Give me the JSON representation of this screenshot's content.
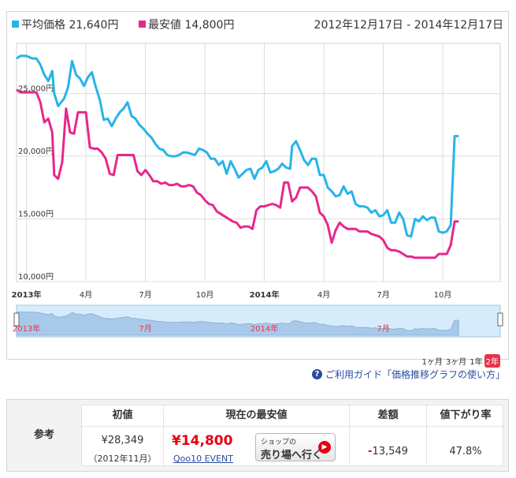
{
  "legend": {
    "avg_label": "平均価格",
    "avg_value": "21,640円",
    "min_label": "最安値",
    "min_value": "14,800円",
    "date_range": "2012年12月17日 - 2014年12月17日"
  },
  "colors": {
    "avg": "#27b4ea",
    "min": "#e8278c",
    "navigator_fill": "#a9c9ea",
    "navigator_bg": "#d6ecfa"
  },
  "chart_data": {
    "type": "line",
    "ylim": [
      10000,
      29000
    ],
    "y_ticks": [
      {
        "value": 10000,
        "label": "10,000円"
      },
      {
        "value": 15000,
        "label": "15,000円"
      },
      {
        "value": 20000,
        "label": "20,000円"
      },
      {
        "value": 25000,
        "label": "25,000円"
      }
    ],
    "x_range": [
      0,
      24.4
    ],
    "x_ticks": [
      {
        "t": 0.5,
        "label": "2013年",
        "bold": true
      },
      {
        "t": 3.5,
        "label": "4月",
        "bold": false
      },
      {
        "t": 6.5,
        "label": "7月",
        "bold": false
      },
      {
        "t": 9.5,
        "label": "10月",
        "bold": false
      },
      {
        "t": 12.5,
        "label": "2014年",
        "bold": true
      },
      {
        "t": 15.5,
        "label": "4月",
        "bold": false
      },
      {
        "t": 18.5,
        "label": "7月",
        "bold": false
      },
      {
        "t": 21.5,
        "label": "10月",
        "bold": false
      }
    ],
    "grid": true,
    "series": [
      {
        "name": "平均価格",
        "points": [
          [
            0.0,
            27800
          ],
          [
            0.2,
            28000
          ],
          [
            0.5,
            28000
          ],
          [
            0.8,
            27800
          ],
          [
            1.0,
            27800
          ],
          [
            1.2,
            27300
          ],
          [
            1.4,
            26500
          ],
          [
            1.6,
            26000
          ],
          [
            1.8,
            26800
          ],
          [
            1.9,
            25000
          ],
          [
            2.1,
            24000
          ],
          [
            2.4,
            24600
          ],
          [
            2.6,
            25500
          ],
          [
            2.8,
            27600
          ],
          [
            3.0,
            26500
          ],
          [
            3.2,
            26200
          ],
          [
            3.4,
            25600
          ],
          [
            3.6,
            26300
          ],
          [
            3.8,
            26700
          ],
          [
            4.0,
            25500
          ],
          [
            4.2,
            24500
          ],
          [
            4.4,
            22900
          ],
          [
            4.6,
            23000
          ],
          [
            4.8,
            22400
          ],
          [
            5.0,
            23000
          ],
          [
            5.2,
            23500
          ],
          [
            5.4,
            23800
          ],
          [
            5.6,
            24300
          ],
          [
            5.8,
            23200
          ],
          [
            6.0,
            23000
          ],
          [
            6.2,
            22500
          ],
          [
            6.4,
            22200
          ],
          [
            6.6,
            21800
          ],
          [
            6.8,
            21500
          ],
          [
            7.0,
            21000
          ],
          [
            7.2,
            20600
          ],
          [
            7.4,
            20500
          ],
          [
            7.6,
            20100
          ],
          [
            7.8,
            20000
          ],
          [
            8.0,
            20000
          ],
          [
            8.2,
            20100
          ],
          [
            8.4,
            20300
          ],
          [
            8.6,
            20300
          ],
          [
            8.8,
            20200
          ],
          [
            9.0,
            20100
          ],
          [
            9.2,
            20600
          ],
          [
            9.4,
            20500
          ],
          [
            9.6,
            20300
          ],
          [
            9.8,
            19800
          ],
          [
            10.0,
            19800
          ],
          [
            10.2,
            19300
          ],
          [
            10.4,
            19600
          ],
          [
            10.6,
            18600
          ],
          [
            10.8,
            19600
          ],
          [
            11.0,
            19000
          ],
          [
            11.2,
            18300
          ],
          [
            11.4,
            18600
          ],
          [
            11.6,
            18900
          ],
          [
            11.8,
            19000
          ],
          [
            12.0,
            18200
          ],
          [
            12.2,
            18900
          ],
          [
            12.4,
            19100
          ],
          [
            12.6,
            19600
          ],
          [
            12.8,
            18700
          ],
          [
            13.0,
            18800
          ],
          [
            13.2,
            19000
          ],
          [
            13.4,
            19400
          ],
          [
            13.6,
            19100
          ],
          [
            13.8,
            19000
          ],
          [
            13.9,
            20800
          ],
          [
            14.1,
            21200
          ],
          [
            14.3,
            20500
          ],
          [
            14.5,
            19700
          ],
          [
            14.7,
            19300
          ],
          [
            14.9,
            19800
          ],
          [
            15.1,
            19800
          ],
          [
            15.3,
            18500
          ],
          [
            15.5,
            18500
          ],
          [
            15.7,
            17500
          ],
          [
            15.9,
            17200
          ],
          [
            16.1,
            16800
          ],
          [
            16.3,
            16900
          ],
          [
            16.5,
            17600
          ],
          [
            16.7,
            17000
          ],
          [
            16.9,
            17200
          ],
          [
            17.1,
            16200
          ],
          [
            17.3,
            16000
          ],
          [
            17.5,
            16000
          ],
          [
            17.7,
            15900
          ],
          [
            17.9,
            15500
          ],
          [
            18.1,
            15700
          ],
          [
            18.3,
            15200
          ],
          [
            18.5,
            15300
          ],
          [
            18.7,
            15700
          ],
          [
            18.9,
            14700
          ],
          [
            19.1,
            14700
          ],
          [
            19.3,
            15500
          ],
          [
            19.5,
            15000
          ],
          [
            19.7,
            13700
          ],
          [
            19.9,
            13600
          ],
          [
            20.1,
            15000
          ],
          [
            20.3,
            14800
          ],
          [
            20.5,
            15200
          ],
          [
            20.7,
            14900
          ],
          [
            20.9,
            15100
          ],
          [
            21.1,
            15100
          ],
          [
            21.3,
            14000
          ],
          [
            21.5,
            13900
          ],
          [
            21.7,
            14000
          ],
          [
            21.9,
            14500
          ],
          [
            22.1,
            21600
          ],
          [
            22.3,
            21600
          ]
        ]
      },
      {
        "name": "最安値",
        "points": [
          [
            0.0,
            25300
          ],
          [
            0.2,
            25100
          ],
          [
            0.5,
            25100
          ],
          [
            0.8,
            25100
          ],
          [
            1.0,
            25100
          ],
          [
            1.2,
            24300
          ],
          [
            1.4,
            22700
          ],
          [
            1.6,
            23000
          ],
          [
            1.8,
            21900
          ],
          [
            1.9,
            18500
          ],
          [
            2.1,
            18200
          ],
          [
            2.3,
            19500
          ],
          [
            2.5,
            23800
          ],
          [
            2.7,
            21900
          ],
          [
            2.9,
            21800
          ],
          [
            3.1,
            23500
          ],
          [
            3.3,
            23500
          ],
          [
            3.5,
            23500
          ],
          [
            3.7,
            20700
          ],
          [
            3.9,
            20600
          ],
          [
            4.1,
            20600
          ],
          [
            4.3,
            20300
          ],
          [
            4.5,
            19800
          ],
          [
            4.7,
            18600
          ],
          [
            4.9,
            18500
          ],
          [
            5.1,
            20100
          ],
          [
            5.3,
            20100
          ],
          [
            5.5,
            20100
          ],
          [
            5.7,
            20100
          ],
          [
            5.9,
            20100
          ],
          [
            6.1,
            18800
          ],
          [
            6.3,
            18500
          ],
          [
            6.5,
            18900
          ],
          [
            6.7,
            18500
          ],
          [
            6.9,
            18000
          ],
          [
            7.1,
            18000
          ],
          [
            7.3,
            17800
          ],
          [
            7.5,
            17900
          ],
          [
            7.7,
            17700
          ],
          [
            7.9,
            17700
          ],
          [
            8.1,
            17800
          ],
          [
            8.3,
            17600
          ],
          [
            8.5,
            17600
          ],
          [
            8.7,
            17700
          ],
          [
            8.9,
            17600
          ],
          [
            9.1,
            17100
          ],
          [
            9.3,
            16900
          ],
          [
            9.5,
            16500
          ],
          [
            9.7,
            16200
          ],
          [
            9.9,
            16100
          ],
          [
            10.1,
            15600
          ],
          [
            10.3,
            15400
          ],
          [
            10.5,
            15200
          ],
          [
            10.7,
            15000
          ],
          [
            10.9,
            14800
          ],
          [
            11.1,
            14700
          ],
          [
            11.3,
            14300
          ],
          [
            11.5,
            14400
          ],
          [
            11.7,
            14400
          ],
          [
            11.9,
            14200
          ],
          [
            12.1,
            15700
          ],
          [
            12.3,
            16000
          ],
          [
            12.5,
            16000
          ],
          [
            12.7,
            16100
          ],
          [
            12.9,
            16200
          ],
          [
            13.1,
            16100
          ],
          [
            13.3,
            15900
          ],
          [
            13.5,
            17900
          ],
          [
            13.7,
            17900
          ],
          [
            13.9,
            16400
          ],
          [
            14.1,
            16700
          ],
          [
            14.3,
            17500
          ],
          [
            14.5,
            17500
          ],
          [
            14.7,
            17500
          ],
          [
            14.9,
            17200
          ],
          [
            15.1,
            16800
          ],
          [
            15.3,
            15500
          ],
          [
            15.5,
            15200
          ],
          [
            15.7,
            14500
          ],
          [
            15.9,
            13100
          ],
          [
            16.1,
            14100
          ],
          [
            16.3,
            14700
          ],
          [
            16.5,
            14400
          ],
          [
            16.7,
            14200
          ],
          [
            16.9,
            14200
          ],
          [
            17.1,
            14200
          ],
          [
            17.3,
            14000
          ],
          [
            17.5,
            14000
          ],
          [
            17.7,
            14000
          ],
          [
            17.9,
            13800
          ],
          [
            18.1,
            13700
          ],
          [
            18.3,
            13600
          ],
          [
            18.5,
            13300
          ],
          [
            18.7,
            12700
          ],
          [
            18.9,
            12500
          ],
          [
            19.1,
            12500
          ],
          [
            19.3,
            12400
          ],
          [
            19.5,
            12200
          ],
          [
            19.7,
            12000
          ],
          [
            19.9,
            12000
          ],
          [
            20.1,
            11900
          ],
          [
            20.3,
            11900
          ],
          [
            20.5,
            11900
          ],
          [
            20.7,
            11900
          ],
          [
            20.9,
            11900
          ],
          [
            21.1,
            11900
          ],
          [
            21.3,
            12200
          ],
          [
            21.5,
            12200
          ],
          [
            21.7,
            12200
          ],
          [
            21.9,
            12900
          ],
          [
            22.1,
            14800
          ],
          [
            22.3,
            14800
          ]
        ]
      }
    ]
  },
  "navigator": {
    "labels": [
      {
        "t": 0.5,
        "label": "2013年"
      },
      {
        "t": 6.5,
        "label": "7月"
      },
      {
        "t": 12.5,
        "label": "2014年"
      },
      {
        "t": 18.5,
        "label": "7月"
      }
    ]
  },
  "range_buttons": [
    {
      "label": "1ヶ月",
      "active": false
    },
    {
      "label": "3ヶ月",
      "active": false
    },
    {
      "label": "1年",
      "active": false
    },
    {
      "label": "2年",
      "active": true
    }
  ],
  "guide": {
    "icon": "?",
    "text": "ご利用ガイド「価格推移グラフの使い方」"
  },
  "summary": {
    "ref_label": "参考",
    "initial": {
      "header": "初値",
      "value": "¥28,349",
      "date": "（2012年11月）"
    },
    "lowest": {
      "header": "現在の最安値",
      "price": "¥14,800",
      "shop": "Qoo10 EVENT",
      "button_line1": "ショップの",
      "button_line2": "売り場へ行く"
    },
    "diff": {
      "header": "差額",
      "sign": "-",
      "value": "13,549"
    },
    "drop": {
      "header": "値下がり率",
      "value": "47.8%"
    }
  }
}
